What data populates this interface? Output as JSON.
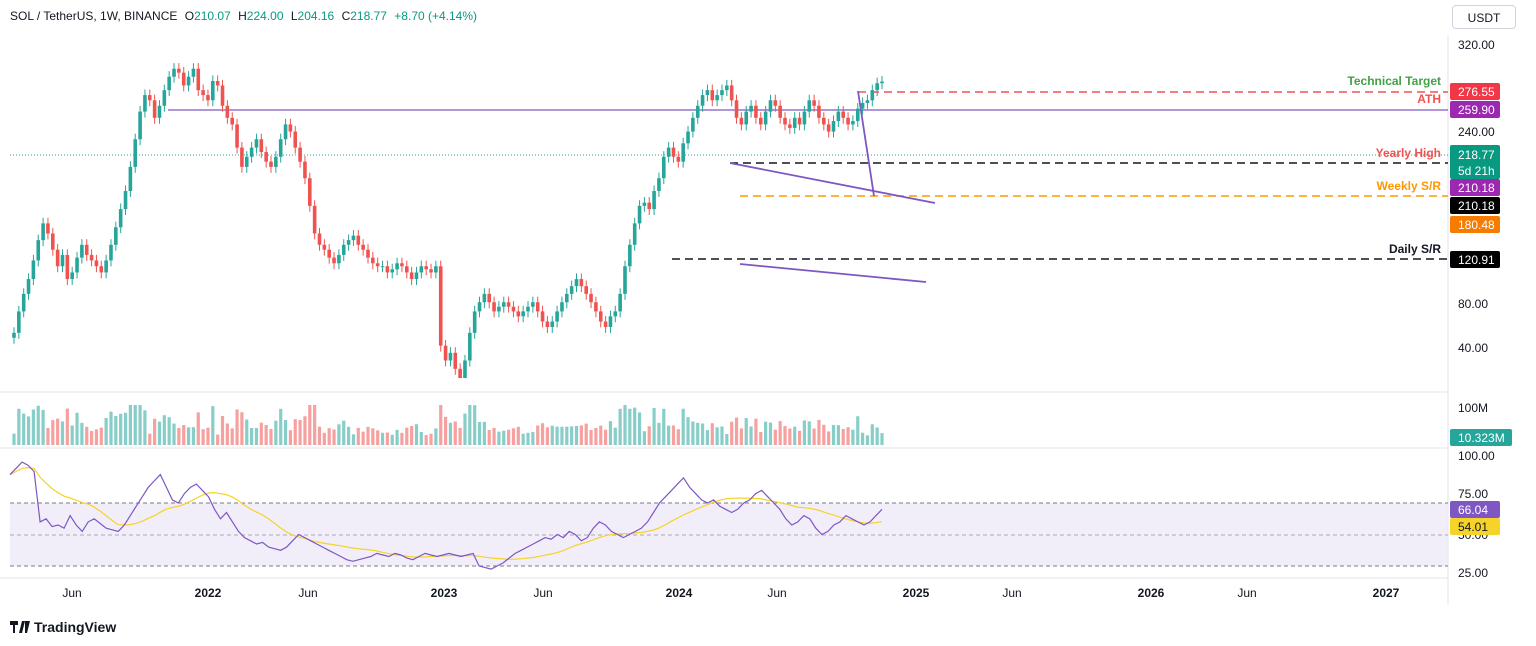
{
  "header": {
    "symbol": "SOL / TetherUS, 1W, BINANCE",
    "o_label": "O",
    "o_value": "210.07",
    "h_label": "H",
    "h_value": "224.00",
    "l_label": "L",
    "l_value": "204.16",
    "c_label": "C",
    "c_value": "218.77",
    "change": "+8.70 (+4.14%)"
  },
  "currency_button": "USDT",
  "brand": "TradingView",
  "colors": {
    "up": "#26a69a",
    "down": "#ef5350",
    "trend": "#7e57c2",
    "target": "#ef5350",
    "weekly": "#ff9800",
    "rsi": "#7e57c2",
    "rsi_ma": "#f5d328"
  },
  "chart_data": [
    {
      "type": "candlestick",
      "price_axis_ticks": [
        "320.00",
        "240.00",
        "80.00",
        "40.00"
      ],
      "time_axis_ticks": [
        "Jun",
        "2022",
        "Jun",
        "2023",
        "Jun",
        "2024",
        "Jun",
        "2025",
        "Jun",
        "2026",
        "Jun",
        "2027"
      ],
      "last_price": "218.77",
      "countdown": "5d 21h",
      "price_labels": [
        {
          "text": "276.55",
          "price": 276.55,
          "color": "#ef5350"
        },
        {
          "text": "259.90",
          "price": 259.9,
          "color": "#9c27b0"
        },
        {
          "text": "218.77",
          "price": 218.77,
          "color": "#089981"
        },
        {
          "text": "210.18",
          "price": 210.18,
          "color": "#9c27b0"
        },
        {
          "text": "210.18",
          "price": 200.0,
          "color": "#000000"
        },
        {
          "text": "180.48",
          "price": 180.48,
          "color": "#f57c00"
        },
        {
          "text": "120.91",
          "price": 120.91,
          "color": "#000000"
        }
      ],
      "level_labels": [
        {
          "text": "Technical Target",
          "color": "#43a047"
        },
        {
          "text": "ATH",
          "color": "#ef5350"
        },
        {
          "text": "Yearly High",
          "color": "#ef5350"
        },
        {
          "text": "Weekly S/R",
          "color": "#ff9800"
        },
        {
          "text": "Daily S/R",
          "color": "#000000"
        }
      ],
      "close": [
        16,
        20,
        24,
        28,
        34,
        42,
        50,
        45,
        38,
        32,
        36,
        28,
        30,
        35,
        40,
        36,
        34,
        32,
        30,
        34,
        40,
        48,
        58,
        70,
        90,
        120,
        160,
        190,
        180,
        150,
        170,
        200,
        230,
        250,
        240,
        210,
        230,
        250,
        200,
        190,
        180,
        220,
        210,
        170,
        150,
        140,
        110,
        90,
        100,
        110,
        120,
        105,
        95,
        90,
        100,
        120,
        140,
        130,
        110,
        95,
        80,
        60,
        45,
        40,
        38,
        35,
        33,
        36,
        40,
        42,
        44,
        40,
        38,
        35,
        33,
        32,
        32,
        30,
        31,
        33,
        32,
        30,
        28,
        30,
        32,
        31,
        30,
        32,
        14,
        12,
        13,
        11,
        10,
        12,
        16,
        20,
        22,
        24,
        22,
        20,
        21,
        22,
        21,
        20,
        19,
        20,
        21,
        22,
        20,
        18,
        17,
        18,
        20,
        22,
        24,
        26,
        28,
        26,
        24,
        22,
        20,
        18,
        17,
        19,
        20,
        24,
        32,
        40,
        50,
        60,
        62,
        58,
        70,
        80,
        100,
        110,
        100,
        95,
        115,
        130,
        150,
        170,
        190,
        200,
        180,
        190,
        200,
        210,
        180,
        150,
        140,
        160,
        170,
        150,
        140,
        160,
        180,
        170,
        150,
        140,
        135,
        150,
        140,
        160,
        180,
        170,
        150,
        140,
        130,
        145,
        160,
        150,
        140,
        145,
        165,
        175,
        180,
        200,
        215,
        218.77
      ],
      "volume_label": "100M",
      "current_volume": "10.323M",
      "rsi": {
        "ticks": [
          "100.00",
          "75.00",
          "50.00",
          "25.00"
        ],
        "current": "66.04",
        "ma_current": "54.01",
        "values": [
          88,
          92,
          96,
          94,
          90,
          58,
          60,
          55,
          56,
          54,
          62,
          56,
          52,
          58,
          60,
          57,
          54,
          53,
          52,
          56,
          62,
          68,
          74,
          80,
          84,
          88,
          80,
          72,
          70,
          76,
          80,
          82,
          78,
          74,
          66,
          60,
          64,
          58,
          52,
          48,
          46,
          44,
          45,
          42,
          41,
          40,
          42,
          46,
          50,
          48,
          46,
          44,
          42,
          40,
          38,
          36,
          34,
          33,
          34,
          35,
          36,
          38,
          37,
          36,
          38,
          37,
          35,
          34,
          36,
          38,
          37,
          36,
          37,
          38,
          37,
          36,
          37,
          38,
          30,
          29,
          28,
          30,
          32,
          35,
          38,
          40,
          42,
          44,
          46,
          48,
          47,
          50,
          48,
          52,
          50,
          46,
          48,
          54,
          58,
          56,
          52,
          50,
          48,
          50,
          52,
          54,
          58,
          64,
          70,
          74,
          78,
          82,
          86,
          80,
          76,
          72,
          70,
          72,
          68,
          66,
          64,
          66,
          70,
          72,
          76,
          78,
          74,
          70,
          66,
          60,
          56,
          58,
          62,
          60,
          54,
          50,
          52,
          56,
          58,
          62,
          60,
          58,
          56,
          58,
          62,
          66
        ]
      }
    }
  ]
}
